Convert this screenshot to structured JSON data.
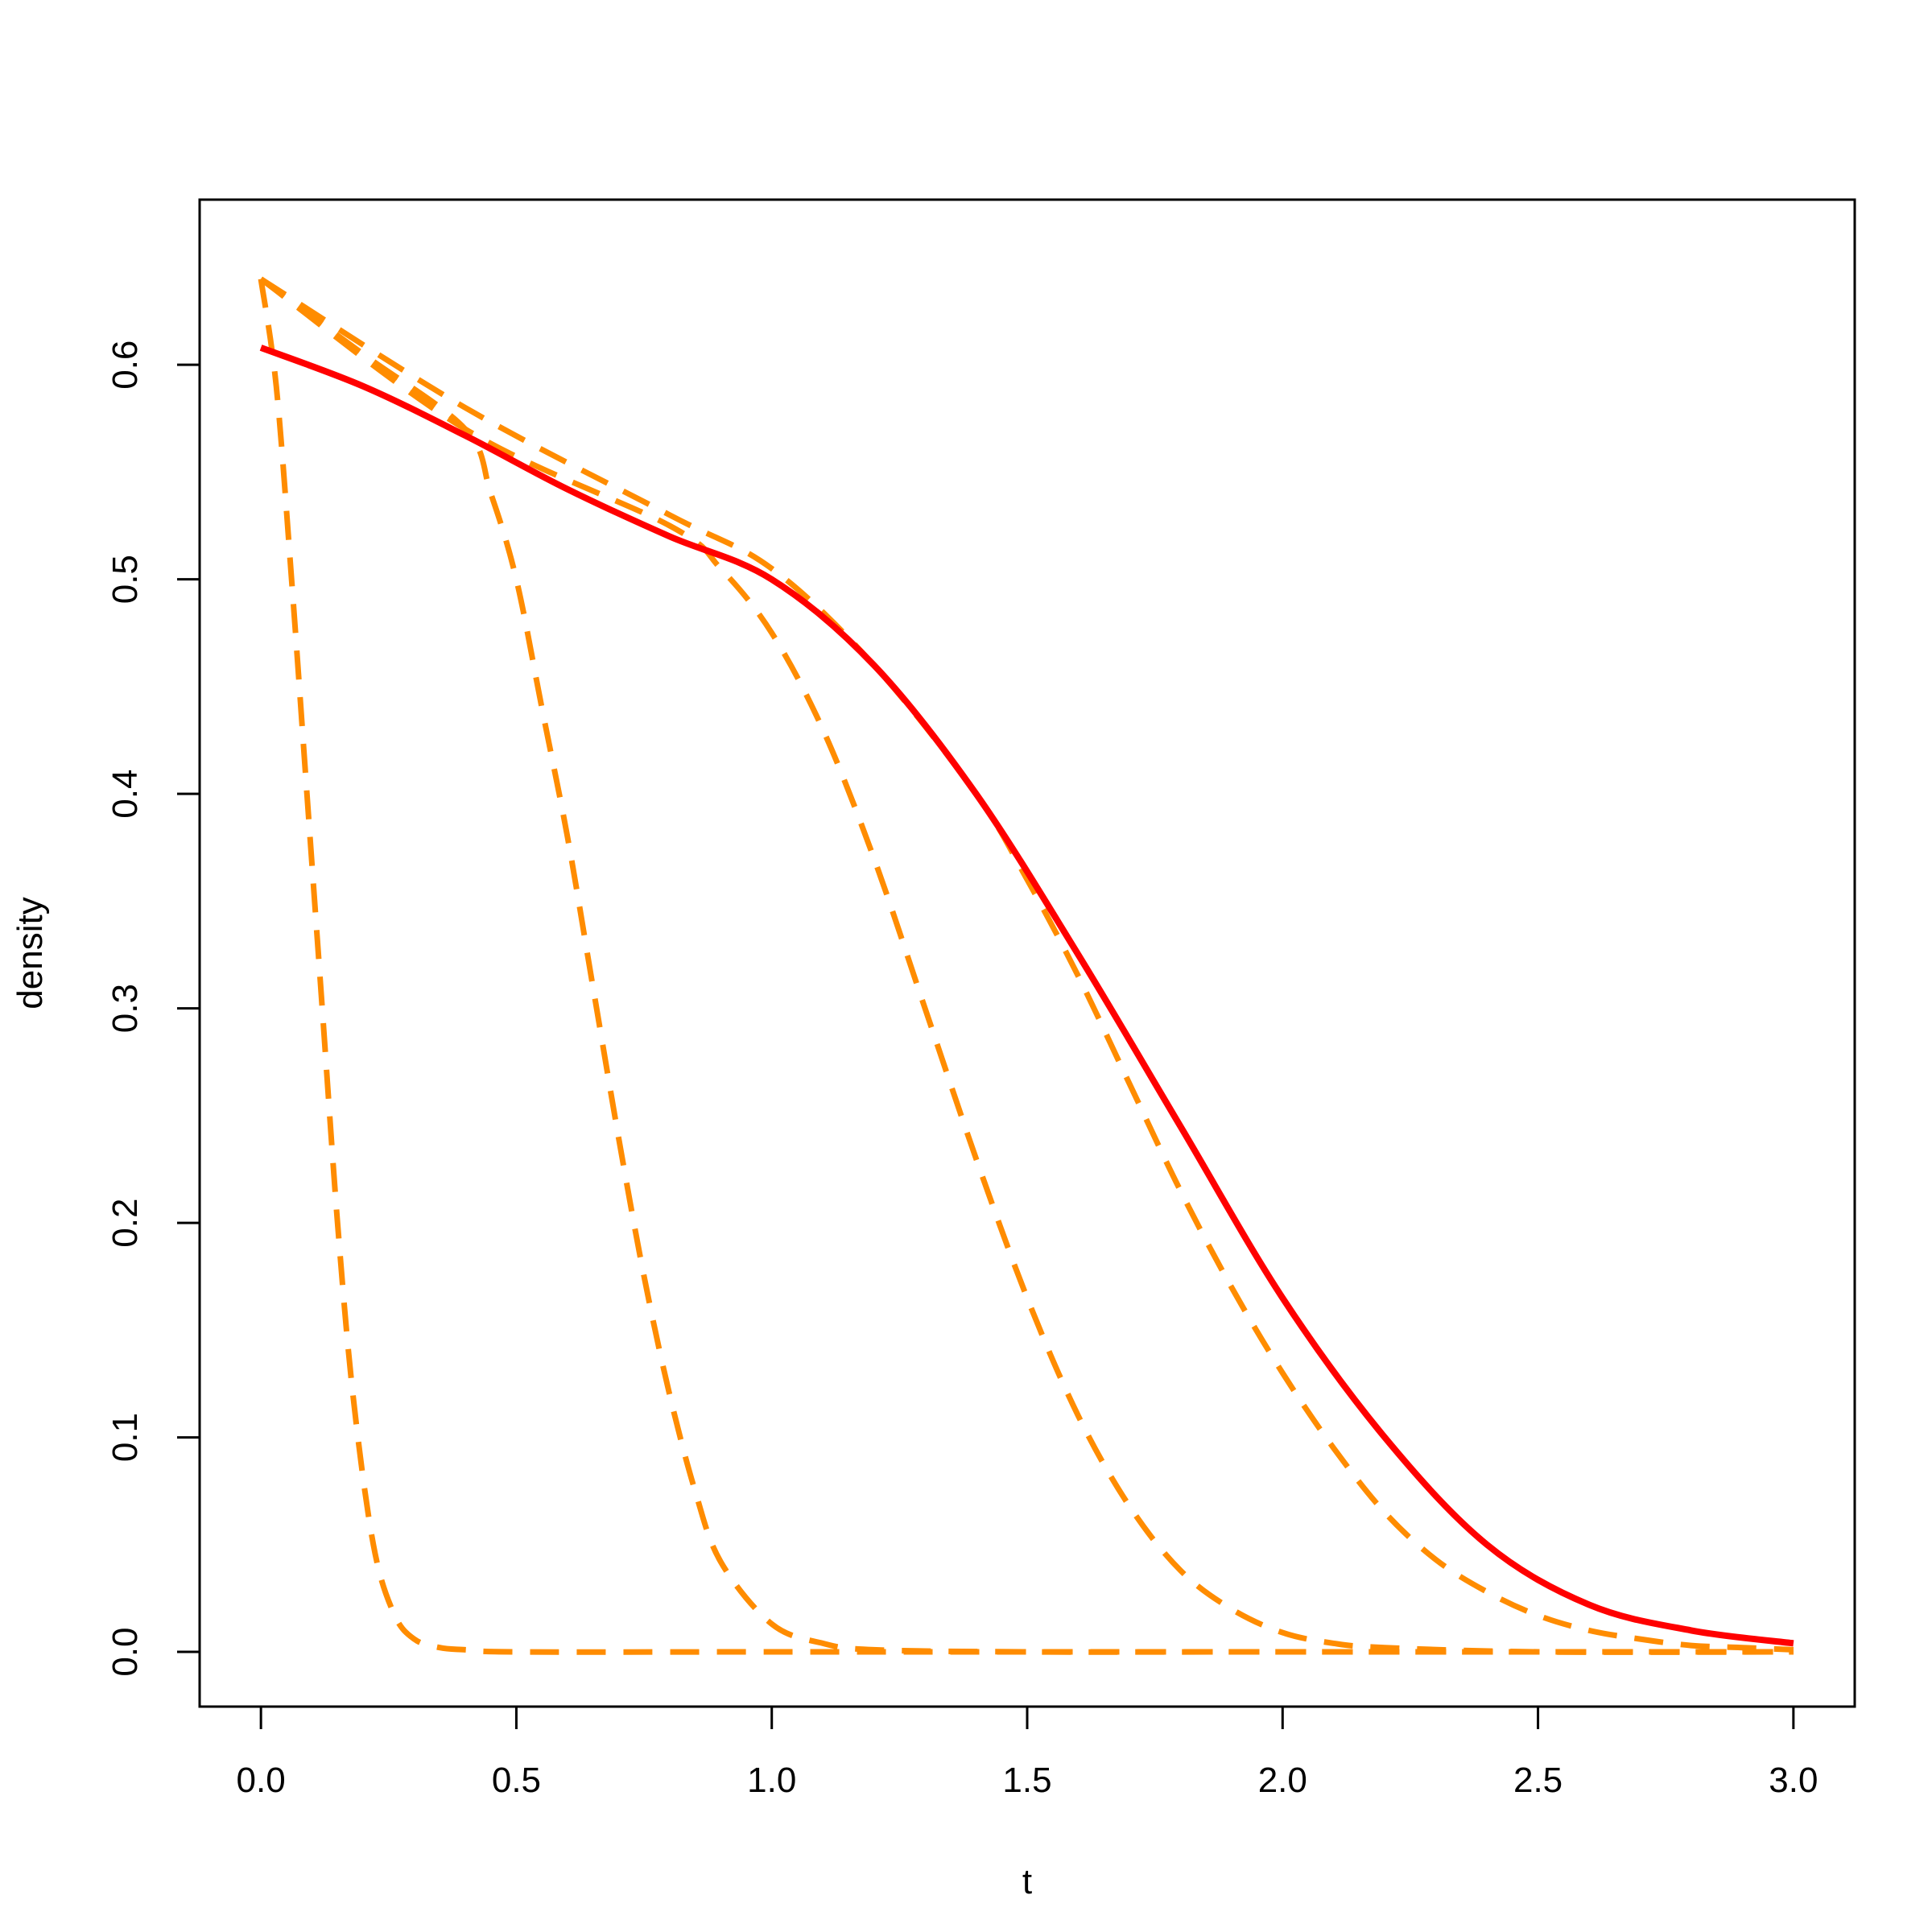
{
  "chart_data": {
    "type": "line",
    "title": "",
    "xlabel": "t",
    "ylabel": "density",
    "xlim": [
      -0.12,
      3.12
    ],
    "ylim": [
      -0.0255,
      0.677
    ],
    "x_ticks": [
      "0.0",
      "0.5",
      "1.0",
      "1.5",
      "2.0",
      "2.5",
      "3.0"
    ],
    "y_ticks": [
      "0.0",
      "0.1",
      "0.2",
      "0.3",
      "0.4",
      "0.5",
      "0.6"
    ],
    "grid": false,
    "legend": "none",
    "series": [
      {
        "color": "#ff0000",
        "style": "solid",
        "x": [
          0.0,
          0.2,
          0.4,
          0.6,
          0.8,
          1.0,
          1.2,
          1.4,
          1.6,
          1.8,
          2.0,
          2.2,
          2.4,
          2.6,
          2.8,
          3.0
        ],
        "y": [
          0.608,
          0.59,
          0.567,
          0.542,
          0.52,
          0.5,
          0.46,
          0.4,
          0.325,
          0.245,
          0.165,
          0.1,
          0.05,
          0.022,
          0.01,
          0.004
        ]
      },
      {
        "color": "#ff8c00",
        "style": "dashed",
        "x": [
          0.0,
          0.03,
          0.06,
          0.09,
          0.12,
          0.15,
          0.18,
          0.22,
          0.26,
          0.3,
          0.35,
          0.4,
          0.5,
          1.0,
          1.5,
          2.0,
          2.5,
          3.0
        ],
        "y": [
          0.64,
          0.59,
          0.5,
          0.4,
          0.3,
          0.2,
          0.12,
          0.05,
          0.018,
          0.006,
          0.002,
          0.001,
          0.0,
          0.0,
          0.0,
          0.0,
          0.0,
          0.0
        ]
      },
      {
        "color": "#ff8c00",
        "style": "dashed",
        "x": [
          0.0,
          0.2,
          0.4,
          0.45,
          0.5,
          0.55,
          0.6,
          0.65,
          0.7,
          0.75,
          0.8,
          0.85,
          0.9,
          1.0,
          1.1,
          1.2,
          1.5,
          2.0,
          3.0
        ],
        "y": [
          0.64,
          0.605,
          0.57,
          0.54,
          0.5,
          0.44,
          0.38,
          0.31,
          0.24,
          0.175,
          0.12,
          0.075,
          0.042,
          0.013,
          0.004,
          0.001,
          0.0,
          0.0,
          0.0
        ]
      },
      {
        "color": "#ff8c00",
        "style": "dashed",
        "x": [
          0.0,
          0.4,
          0.8,
          0.9,
          1.0,
          1.1,
          1.2,
          1.3,
          1.4,
          1.5,
          1.6,
          1.7,
          1.8,
          1.9,
          2.0,
          2.1,
          2.2,
          2.5,
          3.0
        ],
        "y": [
          0.64,
          0.57,
          0.525,
          0.505,
          0.475,
          0.43,
          0.37,
          0.3,
          0.23,
          0.165,
          0.11,
          0.068,
          0.038,
          0.02,
          0.009,
          0.004,
          0.002,
          0.0,
          0.0
        ]
      },
      {
        "color": "#ff8c00",
        "style": "dashed",
        "x": [
          0.0,
          0.4,
          0.8,
          1.0,
          1.2,
          1.4,
          1.5,
          1.6,
          1.7,
          1.8,
          1.9,
          2.0,
          2.1,
          2.2,
          2.3,
          2.4,
          2.5,
          2.6,
          2.7,
          2.8,
          2.9,
          3.0
        ],
        "y": [
          0.64,
          0.58,
          0.53,
          0.505,
          0.46,
          0.4,
          0.36,
          0.315,
          0.265,
          0.215,
          0.17,
          0.13,
          0.095,
          0.065,
          0.043,
          0.028,
          0.017,
          0.01,
          0.006,
          0.003,
          0.002,
          0.001
        ]
      }
    ]
  }
}
